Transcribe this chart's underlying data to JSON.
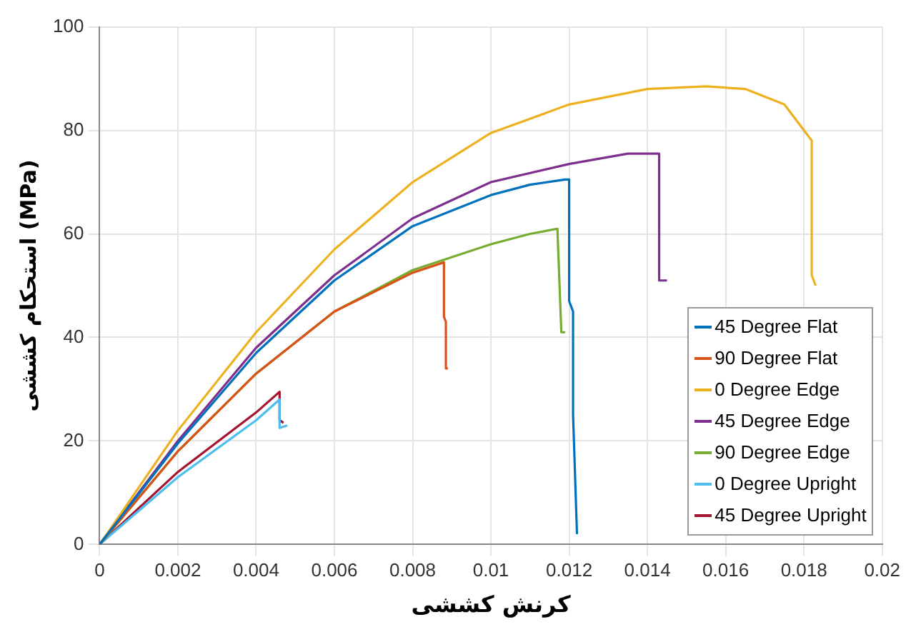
{
  "chart_data": {
    "type": "line",
    "xlabel": "کرنش کششی",
    "ylabel": "استحکام کششی (MPa)",
    "xlim": [
      0,
      0.02
    ],
    "xticks": [
      0,
      0.002,
      0.004,
      0.006,
      0.008,
      0.01,
      0.012,
      0.014,
      0.016,
      0.018,
      0.02
    ],
    "ylim": [
      0,
      100
    ],
    "yticks": [
      0,
      20,
      40,
      60,
      80,
      100
    ],
    "grid": true,
    "legend": "bottom right",
    "marker": "none",
    "line_style": "solid",
    "series": [
      {
        "name": "45 Degree Flat",
        "color": "#0072bd",
        "x": [
          0,
          0.002,
          0.004,
          0.006,
          0.008,
          0.01,
          0.011,
          0.0119,
          0.012,
          0.012,
          0.0121,
          0.0121,
          0.0122
        ],
        "values": [
          0,
          19.5,
          37,
          51,
          61.5,
          67.5,
          69.5,
          70.5,
          70.5,
          47,
          45,
          25,
          2
        ]
      },
      {
        "name": "90 Degree Flat",
        "color": "#d95319",
        "x": [
          0,
          0.002,
          0.004,
          0.006,
          0.008,
          0.0088,
          0.0088,
          0.00885,
          0.00885,
          0.0089
        ],
        "values": [
          0,
          18,
          33,
          45,
          52.5,
          54.5,
          44,
          43,
          34,
          34
        ]
      },
      {
        "name": "0 Degree Edge",
        "color": "#edb120",
        "x": [
          0,
          0.002,
          0.004,
          0.006,
          0.008,
          0.01,
          0.012,
          0.014,
          0.0155,
          0.0165,
          0.0175,
          0.0182,
          0.0182,
          0.0183
        ],
        "values": [
          0,
          22,
          41,
          57,
          70,
          79.5,
          85,
          88,
          88.5,
          88,
          85,
          78,
          52,
          50
        ]
      },
      {
        "name": "45 Degree Edge",
        "color": "#7e2f8e",
        "x": [
          0,
          0.002,
          0.004,
          0.006,
          0.008,
          0.01,
          0.012,
          0.0135,
          0.0143,
          0.0143,
          0.0145
        ],
        "values": [
          0,
          20,
          38,
          52,
          63,
          70,
          73.5,
          75.5,
          75.5,
          51,
          51
        ]
      },
      {
        "name": "90 Degree Edge",
        "color": "#77ac30",
        "x": [
          0,
          0.002,
          0.004,
          0.006,
          0.008,
          0.01,
          0.011,
          0.0117,
          0.0118,
          0.0119
        ],
        "values": [
          0,
          18,
          33,
          45,
          53,
          58,
          60,
          61,
          41,
          41
        ]
      },
      {
        "name": "0 Degree Upright",
        "color": "#4dbeee",
        "x": [
          0,
          0.002,
          0.004,
          0.0046,
          0.0046,
          0.0048
        ],
        "values": [
          0,
          13,
          24,
          28,
          22.5,
          23
        ]
      },
      {
        "name": "45 Degree Upright",
        "color": "#a2142f",
        "x": [
          0,
          0.002,
          0.004,
          0.0046,
          0.0046,
          0.0047
        ],
        "values": [
          0,
          14,
          25.5,
          29.5,
          24,
          23.5
        ]
      }
    ]
  }
}
